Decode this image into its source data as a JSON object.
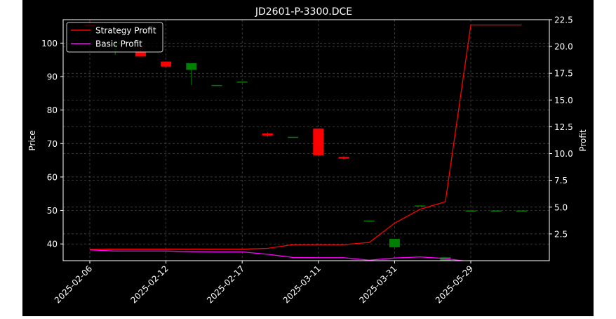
{
  "chart_data": {
    "type": "candlestick+line",
    "title": "JD2601-P-3300.DCE",
    "ylabel": "Price",
    "ylabel_right": "Profit",
    "ylim": [
      35,
      107
    ],
    "ylim_right": [
      0,
      22.5
    ],
    "y_ticks": [
      40,
      50,
      60,
      70,
      80,
      90,
      100
    ],
    "y_ticks_right": [
      "2.5",
      "5.0",
      "7.5",
      "10.0",
      "12.5",
      "15.0",
      "17.5",
      "20.0",
      "22.5"
    ],
    "x_tick_labels": [
      "2025-02-06",
      "2025-02-12",
      "2025-02-17",
      "2025-03-11",
      "2025-03-31",
      "2025-05-29"
    ],
    "x_tick_index": [
      0,
      3,
      6,
      9,
      12,
      15
    ],
    "grid": true,
    "legend_position": "top-left",
    "colors": {
      "up": "#008000",
      "down": "#ff0000",
      "strategy": "#ff0000",
      "basic": "#ff00ff",
      "background": "#000000",
      "foreground": "#ffffff"
    },
    "candles": [
      {
        "o": 105.5,
        "h": 106.5,
        "l": 105,
        "c": 105
      },
      {
        "o": 100,
        "h": 101,
        "l": 96.5,
        "c": 100
      },
      {
        "o": 97.5,
        "h": 99,
        "l": 96,
        "c": 96
      },
      {
        "o": 94.5,
        "h": 94.5,
        "l": 93,
        "c": 93
      },
      {
        "o": 92,
        "h": 94,
        "l": 87.5,
        "c": 94
      },
      {
        "o": 87.5,
        "h": 87.5,
        "l": 87.5,
        "c": 87.5
      },
      {
        "o": 88.5,
        "h": 88.5,
        "l": 88.5,
        "c": 88.5
      },
      {
        "o": 73,
        "h": 73.3,
        "l": 72,
        "c": 72.4
      },
      {
        "o": 72,
        "h": 72,
        "l": 72,
        "c": 72
      },
      {
        "o": 74.5,
        "h": 74.5,
        "l": 66.5,
        "c": 66.5
      },
      {
        "o": 66,
        "h": 66.2,
        "l": 65.2,
        "c": 65.5
      },
      {
        "o": 47,
        "h": 47,
        "l": 47,
        "c": 47
      },
      {
        "o": 39,
        "h": 41.5,
        "l": 39,
        "c": 41.5
      },
      {
        "o": 51.5,
        "h": 51.5,
        "l": 51.5,
        "c": 51.5
      },
      {
        "o": 35,
        "h": 36,
        "l": 35,
        "c": 36
      },
      {
        "o": 50,
        "h": 50,
        "l": 50,
        "c": 50
      },
      {
        "o": 50,
        "h": 50,
        "l": 50,
        "c": 50
      },
      {
        "o": 50,
        "h": 50,
        "l": 50,
        "c": 50
      }
    ],
    "series": [
      {
        "name": "Strategy Profit",
        "values": [
          1.05,
          1.08,
          1.08,
          1.08,
          1.08,
          1.08,
          1.08,
          1.15,
          1.5,
          1.5,
          1.5,
          1.7,
          3.5,
          4.8,
          5.5,
          22,
          22,
          22
        ]
      },
      {
        "name": "Basic Profit",
        "values": [
          1.0,
          0.9,
          0.9,
          0.9,
          0.85,
          0.82,
          0.82,
          0.6,
          0.3,
          0.28,
          0.28,
          0.05,
          0.25,
          0.35,
          0.2,
          -0.1,
          -0.2,
          -0.3
        ]
      }
    ]
  }
}
